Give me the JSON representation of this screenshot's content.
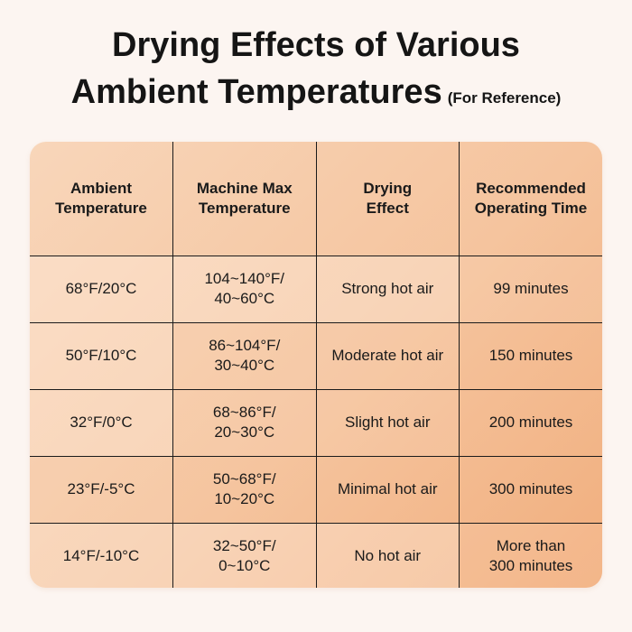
{
  "title": {
    "line1": "Drying Effects of Various",
    "line2": "Ambient Temperatures",
    "note": "(For Reference)"
  },
  "table": {
    "headers": [
      [
        "Ambient",
        "Temperature"
      ],
      [
        "Machine Max",
        "Temperature"
      ],
      [
        "Drying",
        "Effect"
      ],
      [
        "Recommended",
        "Operating Time"
      ]
    ],
    "rows": [
      {
        "ambient": "68°F/20°C",
        "max_temp": [
          "104~140°F/",
          "40~60°C"
        ],
        "effect": "Strong hot air",
        "time": [
          "99 minutes"
        ]
      },
      {
        "ambient": "50°F/10°C",
        "max_temp": [
          "86~104°F/",
          "30~40°C"
        ],
        "effect": "Moderate hot air",
        "time": [
          "150 minutes"
        ]
      },
      {
        "ambient": "32°F/0°C",
        "max_temp": [
          "68~86°F/",
          "20~30°C"
        ],
        "effect": "Slight hot air",
        "time": [
          "200 minutes"
        ]
      },
      {
        "ambient": "23°F/-5°C",
        "max_temp": [
          "50~68°F/",
          "10~20°C"
        ],
        "effect": "Minimal hot air",
        "time": [
          "300 minutes"
        ]
      },
      {
        "ambient": "14°F/-10°C",
        "max_temp": [
          "32~50°F/",
          "0~10°C"
        ],
        "effect": "No hot air",
        "time": [
          "More than",
          "300 minutes"
        ]
      }
    ]
  },
  "colors": {
    "background": "#fcf5f1",
    "table_light": "#f8d6ba",
    "table_dark": "#f1ae7d",
    "border": "#1b1b1b"
  }
}
